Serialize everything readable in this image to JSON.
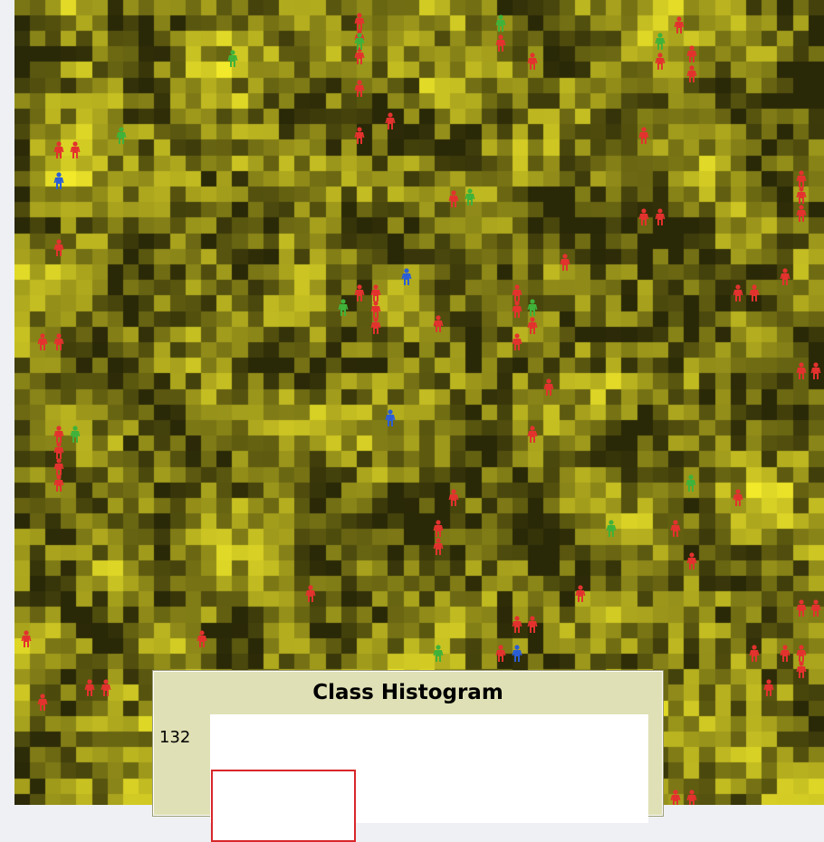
{
  "world": {
    "patch_color": "#e6de2c",
    "agent_colors": {
      "red": "#e3322e",
      "green": "#3fb23a",
      "blue": "#2b5ed6"
    },
    "agent_icon": "person-icon"
  },
  "histogram": {
    "title": "Class Histogram",
    "y_max_label": "132",
    "bar_color": "#d8262a"
  }
}
